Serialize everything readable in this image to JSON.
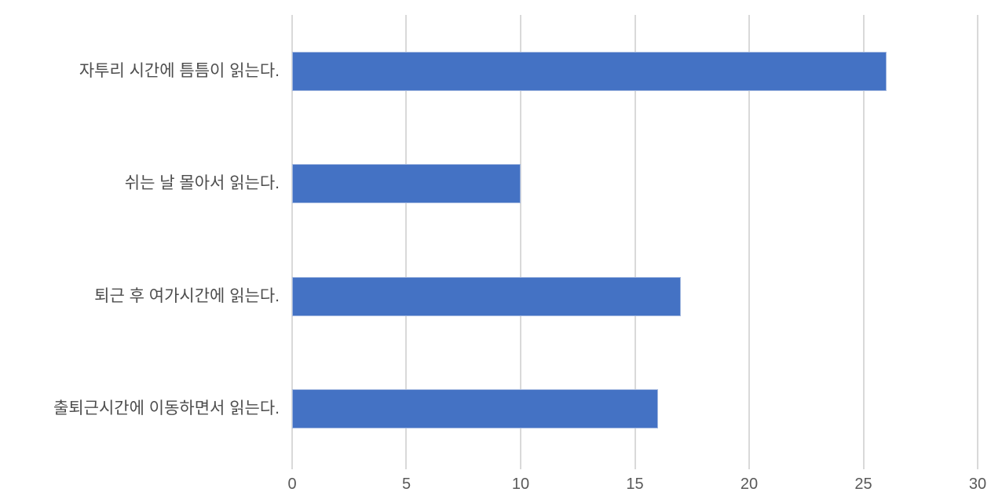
{
  "chart_data": {
    "type": "bar",
    "orientation": "horizontal",
    "title": "",
    "xlabel": "",
    "ylabel": "",
    "categories": [
      "자투리 시간에 틈틈이 읽는다.",
      "쉬는 날 몰아서 읽는다.",
      "퇴근 후 여가시간에 읽는다.",
      "출퇴근시간에 이동하면서 읽는다."
    ],
    "values": [
      26,
      10,
      17,
      16
    ],
    "xlim": [
      0,
      30
    ],
    "xticks": [
      0,
      5,
      10,
      15,
      20,
      25,
      30
    ],
    "grid": true,
    "legend": false,
    "bar_color": "#4472C4",
    "bar_border_color": "#A3B8E0",
    "gridline_color": "#D9D9D9",
    "category_label_color": "#4d4d4d",
    "tick_label_color": "#595959",
    "background_color": "#FFFFFF"
  }
}
